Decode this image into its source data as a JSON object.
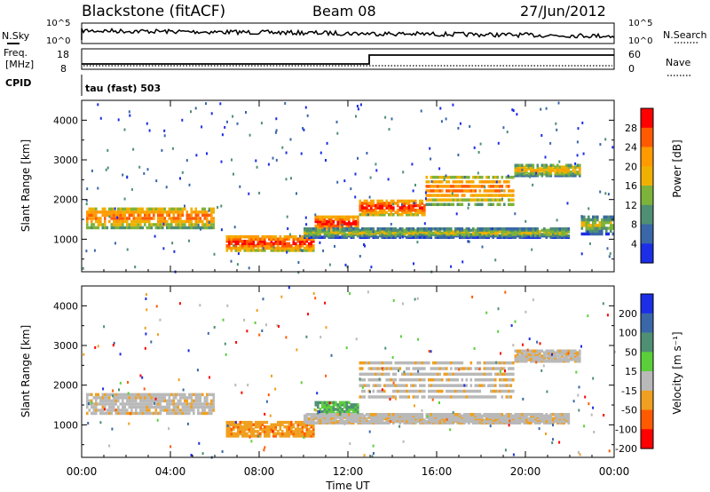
{
  "header": {
    "station": "Blackstone (fitACF)",
    "beam": "Beam 08",
    "date": "27/Jun/2012"
  },
  "top_panels": {
    "nsky_label": "N.Sky",
    "nsky_ticks": [
      "10^5",
      "10^0"
    ],
    "nsearch_label": "N.Search",
    "nsearch_ticks": [
      "10^5",
      "10^0"
    ],
    "freq_label_line1": "Freq.",
    "freq_label_line2": "[MHz]",
    "freq_ticks": [
      "18",
      "8"
    ],
    "nave_label": "Nave",
    "nave_ticks": [
      "60",
      "0"
    ],
    "cpid_label": "CPID",
    "cpid_text": "tau (fast) 503"
  },
  "power_panel": {
    "ylabel": "Slant Range [km]",
    "yticks": [
      "1000",
      "2000",
      "3000",
      "4000"
    ],
    "colorbar_label": "Power [dB]",
    "colorbar_ticks": [
      "28",
      "24",
      "20",
      "16",
      "12",
      "8",
      "4"
    ],
    "colorbar_colors": [
      "#ff0000",
      "#ff5a00",
      "#ff9a00",
      "#f0b000",
      "#7db33a",
      "#4f8f73",
      "#3a67a8",
      "#1c2ee6"
    ]
  },
  "velocity_panel": {
    "ylabel": "Slant Range [km]",
    "yticks": [
      "1000",
      "2000",
      "3000",
      "4000"
    ],
    "colorbar_label": "Velocity [m s⁻¹]",
    "colorbar_ticks": [
      "200",
      "100",
      "50",
      "15",
      "-15",
      "-50",
      "-100",
      "-200"
    ],
    "colorbar_colors": [
      "#1c2ee6",
      "#3a67a8",
      "#4f8f73",
      "#5bcf3a",
      "#b9b9b9",
      "#f0a020",
      "#ff5a00",
      "#ff0000"
    ]
  },
  "x_axis": {
    "label": "Time UT",
    "ticks": [
      "00:00",
      "04:00",
      "08:00",
      "12:00",
      "16:00",
      "20:00",
      "00:00"
    ]
  },
  "chart_data": {
    "type": "heatmap",
    "x_range_hours": [
      0,
      24
    ],
    "y_range_km": [
      180,
      4500
    ],
    "power_bands": [
      {
        "t0": 0.2,
        "t1": 6.0,
        "r0": 1250,
        "r1": 1800,
        "db": 20
      },
      {
        "t0": 6.5,
        "t1": 10.5,
        "r0": 700,
        "r1": 1100,
        "db": 24
      },
      {
        "t0": 10.5,
        "t1": 12.5,
        "r0": 1200,
        "r1": 1600,
        "db": 24
      },
      {
        "t0": 12.5,
        "t1": 15.5,
        "r0": 1600,
        "r1": 2000,
        "db": 24
      },
      {
        "t0": 15.5,
        "t1": 19.5,
        "r0": 1800,
        "r1": 2600,
        "db": 20
      },
      {
        "t0": 19.5,
        "t1": 22.5,
        "r0": 2600,
        "r1": 2900,
        "db": 16
      },
      {
        "t0": 10.0,
        "t1": 22.0,
        "r0": 1050,
        "r1": 1300,
        "db": 12
      },
      {
        "t0": 22.5,
        "t1": 24.0,
        "r0": 1100,
        "r1": 1600,
        "db": 12
      }
    ],
    "velocity_bands": [
      {
        "t0": 0.2,
        "t1": 6.0,
        "r0": 1250,
        "r1": 1800,
        "v": -5
      },
      {
        "t0": 6.5,
        "t1": 10.5,
        "r0": 700,
        "r1": 1100,
        "v": -40
      },
      {
        "t0": 10.5,
        "t1": 12.5,
        "r0": 1200,
        "r1": 1600,
        "v": 30
      },
      {
        "t0": 12.5,
        "t1": 19.5,
        "r0": 1600,
        "r1": 2600,
        "v": -5
      },
      {
        "t0": 10.0,
        "t1": 22.0,
        "r0": 1050,
        "r1": 1300,
        "v": -5
      },
      {
        "t0": 19.5,
        "t1": 22.5,
        "r0": 2600,
        "r1": 2900,
        "v": -5
      }
    ]
  }
}
